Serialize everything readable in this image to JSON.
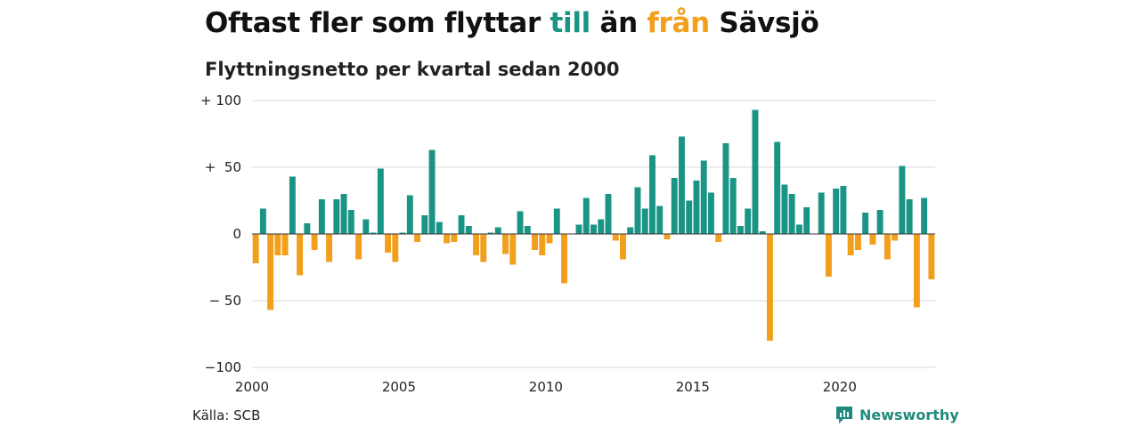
{
  "header": {
    "title_parts": [
      {
        "text": "Oftast fler som flyttar ",
        "color": "#111111"
      },
      {
        "text": "till",
        "color": "#1a9485"
      },
      {
        "text": " än ",
        "color": "#111111"
      },
      {
        "text": "från",
        "color": "#f29f1c"
      },
      {
        "text": " Sävsjö",
        "color": "#111111"
      }
    ],
    "subtitle": "Flyttningsnetto per kvartal sedan 2000"
  },
  "footer": {
    "source": "Källa: SCB",
    "brand": "Newsworthy",
    "brand_icon": "newsworthy-chart-logo-icon"
  },
  "colors": {
    "positive": "#1a9485",
    "negative": "#f29f1c",
    "grid": "#d9d9d9",
    "zero_line": "#333333"
  },
  "chart_data": {
    "type": "bar",
    "title": "Oftast fler som flyttar till än från Sävsjö",
    "subtitle": "Flyttningsnetto per kvartal sedan 2000",
    "ylim": [
      -100,
      100
    ],
    "yticks": [
      {
        "value": 100,
        "label": "+ 100"
      },
      {
        "value": 50,
        "label": "+  50"
      },
      {
        "value": 0,
        "label": "0"
      },
      {
        "value": -50,
        "label": "− 50"
      },
      {
        "value": -100,
        "label": "−100"
      }
    ],
    "xticks": [
      "2000",
      "2005",
      "2010",
      "2015",
      "2020"
    ],
    "start_year": 2000,
    "grid": true,
    "values": [
      -22,
      19,
      -57,
      -16,
      -16,
      43,
      -31,
      8,
      -12,
      26,
      -21,
      26,
      30,
      18,
      -19,
      11,
      1,
      49,
      -14,
      -21,
      1,
      29,
      -6,
      14,
      63,
      9,
      -7,
      -6,
      14,
      6,
      -16,
      -21,
      1,
      5,
      -15,
      -23,
      17,
      6,
      -12,
      -16,
      -7,
      19,
      -37,
      0,
      7,
      27,
      7,
      11,
      30,
      -5,
      -19,
      5,
      35,
      19,
      59,
      21,
      -4,
      42,
      73,
      25,
      40,
      55,
      31,
      -6,
      68,
      42,
      6,
      19,
      93,
      2,
      -80,
      69,
      37,
      30,
      7,
      20,
      0,
      31,
      -32,
      34,
      36,
      -16,
      -12,
      16,
      -8,
      18,
      -19,
      -5,
      51,
      26,
      -55,
      27,
      -34
    ]
  }
}
